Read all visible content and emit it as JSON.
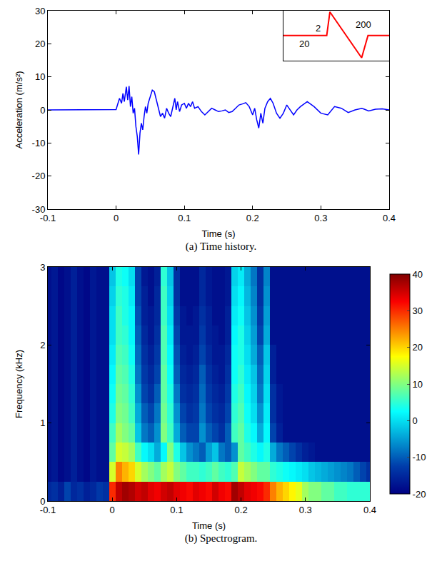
{
  "chart_data": [
    {
      "type": "line",
      "caption": "(a) Time history.",
      "x_label": "Time (s)",
      "y_label": "Acceleration (m/s²)",
      "color": "#0000ff",
      "x": [
        -0.1,
        -0.05,
        0.0,
        0.002,
        0.005,
        0.008,
        0.01,
        0.012,
        0.015,
        0.017,
        0.019,
        0.021,
        0.023,
        0.025,
        0.027,
        0.029,
        0.031,
        0.033,
        0.035,
        0.037,
        0.039,
        0.041,
        0.043,
        0.045,
        0.047,
        0.05,
        0.053,
        0.056,
        0.059,
        0.062,
        0.065,
        0.068,
        0.071,
        0.074,
        0.077,
        0.08,
        0.083,
        0.086,
        0.088,
        0.09,
        0.093,
        0.096,
        0.1,
        0.103,
        0.106,
        0.109,
        0.112,
        0.115,
        0.12,
        0.125,
        0.13,
        0.135,
        0.14,
        0.145,
        0.15,
        0.155,
        0.16,
        0.165,
        0.17,
        0.175,
        0.18,
        0.185,
        0.19,
        0.195,
        0.2,
        0.203,
        0.206,
        0.209,
        0.212,
        0.215,
        0.218,
        0.222,
        0.226,
        0.23,
        0.235,
        0.24,
        0.245,
        0.25,
        0.255,
        0.26,
        0.265,
        0.27,
        0.28,
        0.29,
        0.3,
        0.31,
        0.32,
        0.33,
        0.34,
        0.35,
        0.36,
        0.37,
        0.38,
        0.39,
        0.4
      ],
      "values": [
        0,
        0,
        0.1,
        1.5,
        3.5,
        2,
        5,
        2.5,
        7,
        3,
        7.2,
        1,
        4,
        -1,
        0.5,
        -5,
        -8,
        -13.5,
        -7,
        -4,
        -6,
        -2,
        1,
        -1,
        2,
        4,
        6,
        5.5,
        3,
        1,
        -2,
        -1,
        -2.5,
        0.5,
        -1,
        -2,
        1,
        3.5,
        0,
        2.5,
        -0.5,
        1.5,
        2,
        0.5,
        2,
        1,
        2.5,
        0.5,
        1,
        -0.5,
        -1.5,
        -0.5,
        0.5,
        0,
        -0.5,
        -0.3,
        0,
        -0.8,
        -0.5,
        0.5,
        1.5,
        1.8,
        2.2,
        1,
        -1.5,
        0.5,
        -3,
        -5.5,
        -1,
        -4,
        0.5,
        2.5,
        3.5,
        2,
        -1,
        -2.5,
        -1,
        1.5,
        0,
        -1.5,
        0,
        1,
        2.5,
        1,
        -1,
        -1.5,
        1,
        0.5,
        -0.8,
        0,
        0.5,
        -0.3,
        0.2,
        0.3,
        0
      ],
      "xlim": [
        -0.1,
        0.4
      ],
      "ylim": [
        -30,
        30
      ],
      "xticks": [
        -0.1,
        0,
        0.1,
        0.2,
        0.3,
        0.4
      ],
      "yticks": [
        -30,
        -20,
        -10,
        0,
        10,
        20,
        30
      ],
      "inset": {
        "type": "line",
        "color": "#ff0000",
        "tick_labels": false,
        "x": [
          0,
          41,
          44,
          74,
          80,
          100
        ],
        "y": [
          0,
          0,
          0.95,
          -0.9,
          0,
          0
        ],
        "xlim": [
          0,
          100
        ],
        "ylim": [
          -1,
          1
        ],
        "labels": [
          {
            "text": "2",
            "x": 33,
            "y": 0.3
          },
          {
            "text": "20",
            "x": 20,
            "y": -0.35
          },
          {
            "text": "200",
            "x": 76,
            "y": 0.45
          }
        ]
      }
    },
    {
      "type": "heatmap",
      "caption": "(b) Spectrogram.",
      "x_label": "Time (s)",
      "y_label": "Frequency (kHz)",
      "color": "jet",
      "xlim": [
        -0.1,
        0.4
      ],
      "ylim": [
        0,
        3
      ],
      "xticks": [
        -0.1,
        0,
        0.1,
        0.2,
        0.3,
        0.4
      ],
      "yticks": [
        0,
        1,
        2,
        3
      ],
      "colorbar_range": [
        -20,
        40
      ],
      "colorbar_ticks": [
        -20,
        -10,
        0,
        10,
        20,
        30,
        40
      ],
      "x": [
        -0.1,
        -0.09,
        -0.08,
        -0.07,
        -0.06,
        -0.05,
        -0.04,
        -0.03,
        -0.02,
        -0.01,
        0,
        0.01,
        0.02,
        0.03,
        0.04,
        0.05,
        0.06,
        0.07,
        0.08,
        0.09,
        0.1,
        0.11,
        0.12,
        0.13,
        0.14,
        0.15,
        0.16,
        0.17,
        0.18,
        0.19,
        0.2,
        0.21,
        0.22,
        0.23,
        0.24,
        0.25,
        0.26,
        0.27,
        0.28,
        0.29,
        0.3,
        0.31,
        0.32,
        0.33,
        0.34,
        0.35,
        0.36,
        0.37,
        0.38,
        0.39,
        0.4
      ],
      "y": [
        0.125,
        0.375,
        0.625,
        0.875,
        1.125,
        1.375,
        1.625,
        1.875,
        2.125,
        2.375,
        2.625,
        2.875
      ],
      "z": [
        [
          -15,
          -14,
          -16,
          -12,
          -15,
          -14,
          -16,
          -15,
          -13,
          -14,
          30,
          36,
          38,
          37,
          35,
          36,
          34,
          33,
          35,
          36,
          34,
          33,
          32,
          34,
          33,
          32,
          35,
          33,
          32,
          38,
          36,
          34,
          33,
          32,
          30,
          25,
          22,
          20,
          18,
          16,
          12,
          10,
          10,
          8,
          8,
          6,
          6,
          5,
          5,
          5,
          5
        ],
        [
          -18,
          -17,
          -19,
          -18,
          -16,
          -18,
          -19,
          -17,
          -18,
          -18,
          15,
          25,
          22,
          20,
          15,
          12,
          10,
          8,
          12,
          14,
          10,
          8,
          6,
          6,
          5,
          6,
          8,
          6,
          5,
          7,
          14,
          12,
          10,
          8,
          8,
          5,
          4,
          3,
          2,
          1,
          0,
          -2,
          -3,
          -4,
          -5,
          -6,
          -7,
          -8,
          -10,
          -12,
          -14
        ],
        [
          -18,
          -17,
          -19,
          -18,
          -16,
          -18,
          -19,
          -17,
          -18,
          -18,
          8,
          15,
          14,
          12,
          6,
          2,
          0,
          -4,
          2,
          10,
          4,
          -2,
          -6,
          -8,
          -10,
          -5,
          -2,
          -8,
          -10,
          -6,
          8,
          6,
          4,
          2,
          4,
          -4,
          -8,
          -10,
          -12,
          -14,
          -16,
          -17,
          -18,
          -18,
          -18,
          -18,
          -18,
          -18,
          -18,
          -18,
          -18
        ],
        [
          -18,
          -17,
          -19,
          -18,
          -16,
          -18,
          -19,
          -17,
          -18,
          -18,
          6,
          12,
          10,
          8,
          -2,
          -8,
          -10,
          -6,
          10,
          6,
          -4,
          -10,
          -12,
          -12,
          -6,
          -10,
          -12,
          -14,
          -10,
          6,
          8,
          4,
          2,
          -4,
          2,
          -12,
          -16,
          -18,
          -18,
          -18,
          -18,
          -18,
          -18,
          -18,
          -18,
          -18,
          -18,
          -18,
          -18,
          -18,
          -18
        ],
        [
          -18,
          -17,
          -19,
          -18,
          -16,
          -18,
          -19,
          -17,
          -18,
          -18,
          4,
          10,
          9,
          6,
          -4,
          -10,
          -12,
          -8,
          9,
          5,
          -6,
          -12,
          -14,
          -13,
          -8,
          -12,
          -14,
          -15,
          -12,
          5,
          7,
          3,
          0,
          -6,
          1,
          -14,
          -17,
          -18,
          -18,
          -18,
          -18,
          -18,
          -18,
          -18,
          -18,
          -18,
          -18,
          -18,
          -18,
          -18,
          -18
        ],
        [
          -18,
          -17,
          -19,
          -18,
          -16,
          -18,
          -19,
          -17,
          -18,
          -18,
          3,
          9,
          8,
          5,
          -6,
          -12,
          -14,
          -10,
          8,
          4,
          -8,
          -14,
          -15,
          -14,
          -9,
          -13,
          -15,
          -16,
          -13,
          4,
          6,
          2,
          -1,
          -8,
          0,
          -14,
          -17,
          -18,
          -18,
          -18,
          -18,
          -18,
          -18,
          -18,
          -18,
          -18,
          -18,
          -18,
          -18,
          -18,
          -18
        ],
        [
          -18,
          -17,
          -19,
          -18,
          -16,
          -18,
          -19,
          -17,
          -18,
          -18,
          2,
          8,
          7,
          4,
          -8,
          -13,
          -15,
          -12,
          8,
          3,
          -10,
          -15,
          -16,
          -15,
          -10,
          -14,
          -16,
          -17,
          -14,
          3,
          5,
          1,
          -2,
          -9,
          -1,
          -16,
          -18,
          -18,
          -18,
          -18,
          -18,
          -18,
          -18,
          -18,
          -18,
          -18,
          -18,
          -18,
          -18,
          -18,
          -18
        ],
        [
          -18,
          -17,
          -19,
          -18,
          -16,
          -18,
          -19,
          -17,
          -18,
          -18,
          1,
          7,
          6,
          3,
          -9,
          -14,
          -16,
          -13,
          7,
          2,
          -11,
          -16,
          -17,
          -16,
          -12,
          -15,
          -17,
          -17,
          -15,
          3,
          4,
          0,
          -4,
          -10,
          -2,
          -16,
          -18,
          -18,
          -18,
          -18,
          -18,
          -18,
          -18,
          -18,
          -18,
          -18,
          -18,
          -18,
          -18,
          -18,
          -18
        ],
        [
          -18,
          -17,
          -19,
          -18,
          -16,
          -18,
          -19,
          -17,
          -18,
          -18,
          0,
          6,
          5,
          2,
          -10,
          -15,
          -17,
          -14,
          7,
          1,
          -12,
          -17,
          -17,
          -17,
          -13,
          -16,
          -17,
          -18,
          -16,
          2,
          4,
          -1,
          -5,
          -12,
          -4,
          -18,
          -18,
          -18,
          -18,
          -18,
          -18,
          -18,
          -18,
          -18,
          -18,
          -18,
          -18,
          -18,
          -18,
          -18,
          -18
        ],
        [
          -18,
          -17,
          -19,
          -18,
          -16,
          -18,
          -19,
          -17,
          -18,
          -18,
          0,
          6,
          4,
          2,
          -11,
          -16,
          -17,
          -15,
          6,
          0,
          -13,
          -17,
          -18,
          -17,
          -14,
          -16,
          -18,
          -18,
          -16,
          1,
          3,
          -2,
          -6,
          -13,
          -5,
          -18,
          -18,
          -18,
          -18,
          -18,
          -18,
          -18,
          -18,
          -18,
          -18,
          -18,
          -18,
          -18,
          -18,
          -18,
          -18
        ],
        [
          -18,
          -17,
          -19,
          -18,
          -16,
          -18,
          -19,
          -17,
          -18,
          -18,
          -1,
          5,
          4,
          1,
          -12,
          -16,
          -18,
          -15,
          6,
          -1,
          -14,
          -18,
          -18,
          -18,
          -15,
          -17,
          -18,
          -18,
          -17,
          0,
          2,
          -3,
          -7,
          -14,
          -6,
          -18,
          -18,
          -18,
          -18,
          -18,
          -18,
          -18,
          -18,
          -18,
          -18,
          -18,
          -18,
          -18,
          -18,
          -18,
          -18
        ],
        [
          -18,
          -17,
          -19,
          -18,
          -16,
          -18,
          -19,
          -17,
          -18,
          -18,
          -2,
          4,
          3,
          0,
          -12,
          -17,
          -18,
          -16,
          5,
          -2,
          -14,
          -18,
          -18,
          -18,
          -15,
          -17,
          -18,
          -18,
          -17,
          -1,
          1,
          -4,
          -8,
          -14,
          -7,
          -18,
          -18,
          -18,
          -18,
          -18,
          -18,
          -18,
          -18,
          -18,
          -18,
          -18,
          -18,
          -18,
          -18,
          -18,
          -18
        ]
      ]
    }
  ]
}
